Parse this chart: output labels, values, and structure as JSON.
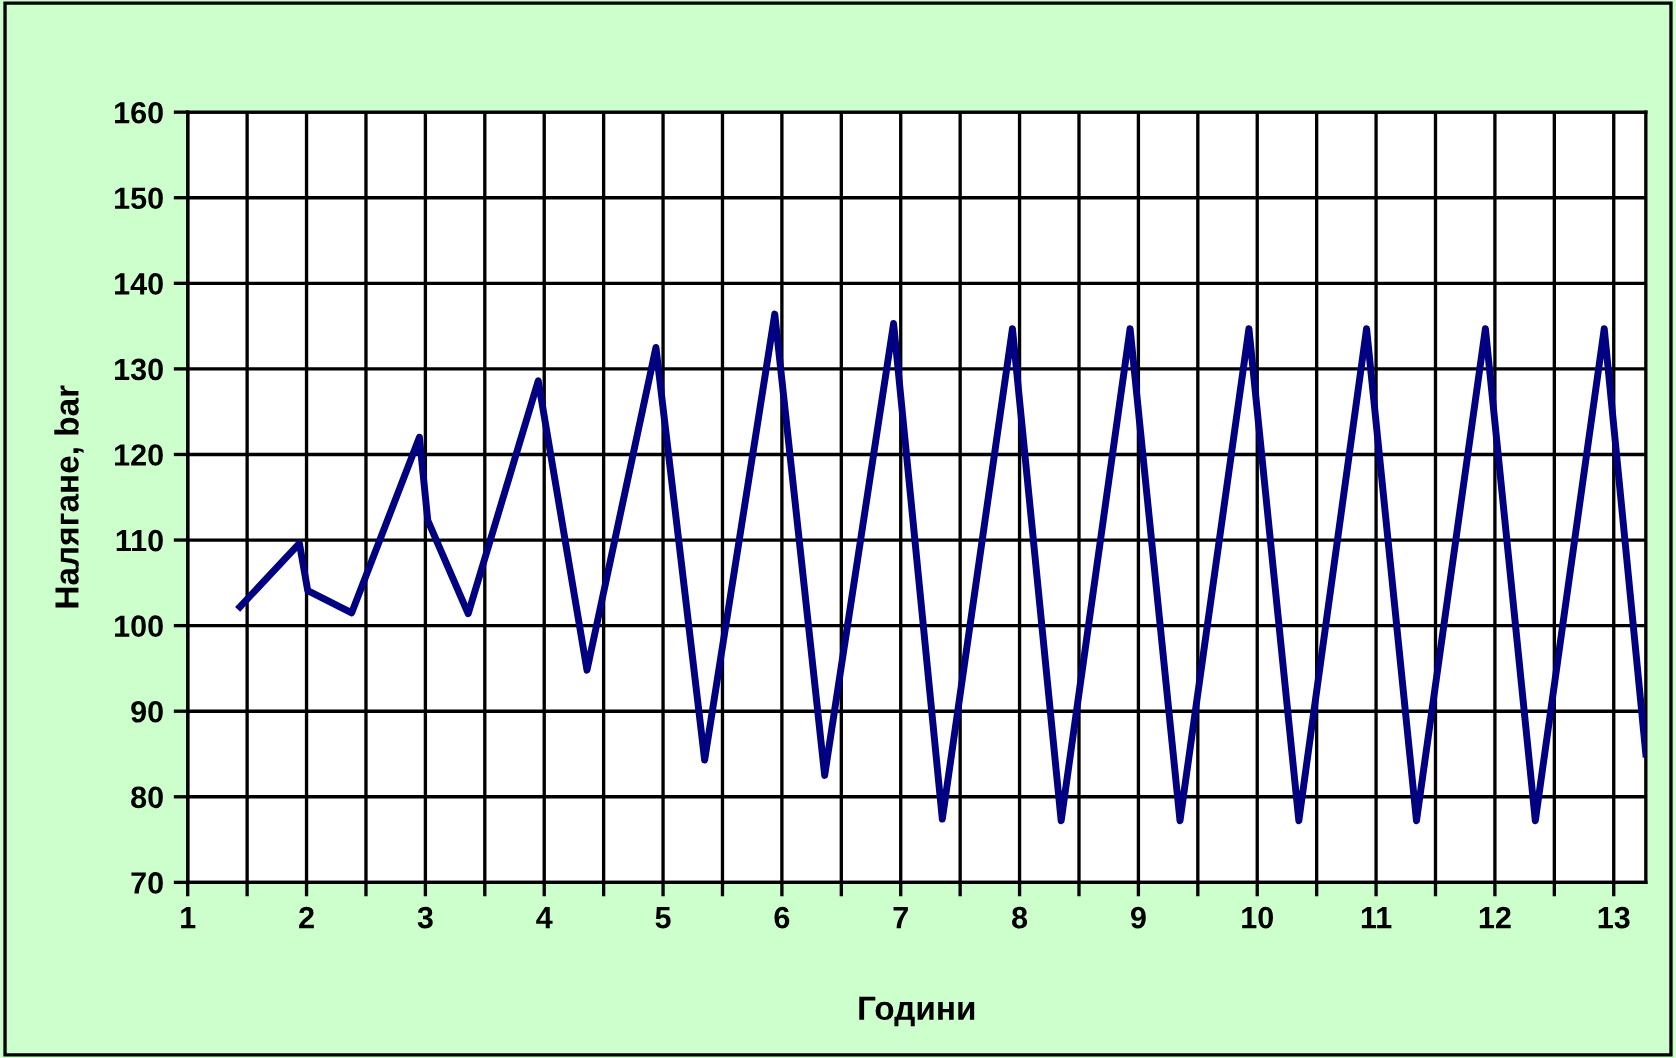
{
  "chart_data": {
    "type": "line",
    "xlabel": "Години",
    "ylabel": "Налягане, bar",
    "x": [
      1.44,
      1.94,
      2.01,
      2.38,
      2.95,
      3.02,
      3.36,
      3.95,
      4.36,
      4.94,
      5.35,
      5.94,
      6.36,
      6.94,
      7.35,
      7.94,
      8.35,
      8.93,
      9.35,
      9.93,
      10.35,
      10.92,
      11.34,
      11.92,
      12.34,
      12.92,
      13.27
    ],
    "series": [
      {
        "color": "#000080",
        "values": [
          102.2,
          109.6,
          104.1,
          101.5,
          122,
          112.3,
          101.4,
          128.6,
          94.8,
          132.5,
          84.3,
          136.4,
          82.5,
          135.3,
          77.4,
          134.7,
          77.2,
          134.7,
          77.2,
          134.7,
          77.2,
          134.7,
          77.2,
          134.7,
          77.2,
          134.7,
          85
        ]
      }
    ],
    "xlim": [
      1,
      13.27
    ],
    "xticks": [
      1,
      {
        "value": 1.5,
        "label": null
      },
      2,
      {
        "value": 2.5,
        "label": null
      },
      3,
      {
        "value": 3.5,
        "label": null
      },
      4,
      {
        "value": 4.5,
        "label": null
      },
      5,
      {
        "value": 5.5,
        "label": null
      },
      6,
      {
        "value": 6.5,
        "label": null
      },
      7,
      {
        "value": 7.5,
        "label": null
      },
      8,
      {
        "value": 8.5,
        "label": null
      },
      9,
      {
        "value": 9.5,
        "label": null
      },
      10,
      {
        "value": 10.5,
        "label": null
      },
      11,
      {
        "value": 11.5,
        "label": null
      },
      12,
      {
        "value": 12.5,
        "label": null
      },
      13
    ],
    "ylim": [
      70,
      160
    ],
    "yticks": [
      70,
      80,
      90,
      100,
      110,
      120,
      130,
      140,
      150,
      160
    ],
    "grid": true,
    "legend": false,
    "marker": "none",
    "line_style": "solid"
  }
}
